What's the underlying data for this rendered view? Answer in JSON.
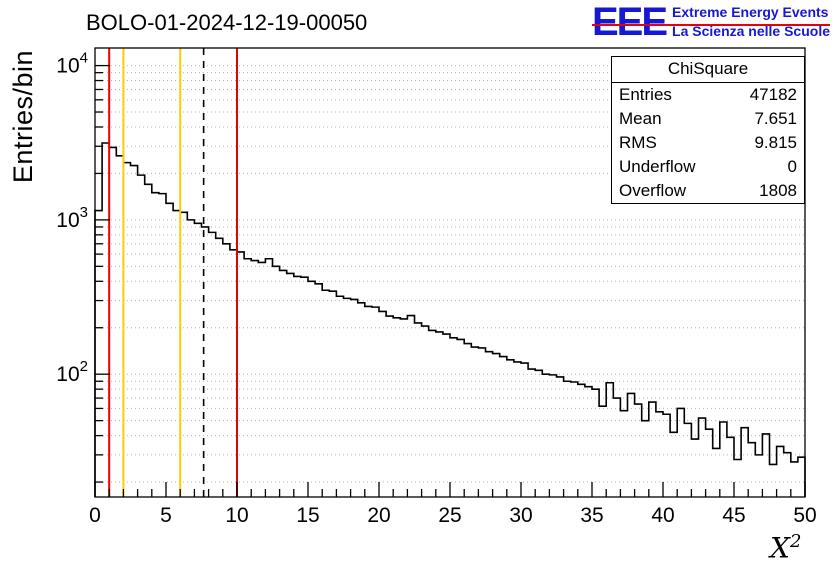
{
  "header": {
    "title": "BOLO-01-2024-12-19-00050"
  },
  "logo": {
    "acronym": "EEE",
    "line1": "Extreme Energy Events",
    "line2": "La Scienza nelle Scuole",
    "text_color": "#1717d6",
    "rule_color": "#e8000d"
  },
  "axis": {
    "ylabel": "Entries/bin",
    "xlabel_base": "X",
    "xlabel_sup": "2"
  },
  "stats": {
    "title": "ChiSquare",
    "rows": [
      {
        "label": "Entries",
        "value": "47182"
      },
      {
        "label": "Mean",
        "value": "7.651"
      },
      {
        "label": "RMS",
        "value": "9.815"
      },
      {
        "label": "Underflow",
        "value": "0"
      },
      {
        "label": "Overflow",
        "value": "1808"
      }
    ]
  },
  "chart_data": {
    "type": "bar",
    "subtype": "step-histogram",
    "title": "BOLO-01-2024-12-19-00050",
    "xlabel": "X^2",
    "ylabel": "Entries/bin",
    "xlim": [
      0,
      50
    ],
    "ylog": true,
    "ylim": [
      16,
      13000
    ],
    "bin_start": 0,
    "bin_width": 0.5,
    "values": [
      1150,
      3150,
      2950,
      2600,
      2350,
      2250,
      1950,
      1700,
      1500,
      1480,
      1280,
      1150,
      1120,
      1000,
      950,
      900,
      830,
      760,
      700,
      640,
      620,
      560,
      545,
      530,
      560,
      500,
      470,
      450,
      430,
      425,
      400,
      385,
      350,
      345,
      320,
      310,
      305,
      290,
      275,
      272,
      255,
      238,
      232,
      228,
      240,
      215,
      205,
      192,
      188,
      182,
      172,
      168,
      158,
      150,
      148,
      140,
      136,
      130,
      124,
      120,
      118,
      108,
      106,
      100,
      99,
      96,
      90,
      89,
      86,
      83,
      80,
      62,
      88,
      70,
      58,
      75,
      64,
      50,
      66,
      57,
      55,
      42,
      60,
      48,
      38,
      52,
      44,
      33,
      49,
      39,
      28,
      45,
      36,
      30,
      41,
      26,
      34,
      31,
      27,
      29
    ],
    "line_color": "#000000",
    "x_major_ticks": [
      0,
      5,
      10,
      15,
      20,
      25,
      30,
      35,
      40,
      45,
      50
    ],
    "x_minor_step": 1,
    "y_decade_exponents": [
      2,
      3,
      4
    ],
    "grid": "horizontal dotted at every log minor tick",
    "grid_color": "#b4b4b4",
    "markers": [
      {
        "x": 1.0,
        "color": "#e60000",
        "style": "solid"
      },
      {
        "x": 2.0,
        "color": "#ffcc00",
        "style": "solid"
      },
      {
        "x": 6.0,
        "color": "#ffcc00",
        "style": "solid"
      },
      {
        "x": 7.65,
        "color": "#000000",
        "style": "dashed"
      },
      {
        "x": 10.0,
        "color": "#e60000",
        "style": "solid"
      }
    ],
    "legend": "stats box top-right: ChiSquare / Entries 47182 / Mean 7.651 / RMS 9.815 / Underflow 0 / Overflow 1808"
  }
}
